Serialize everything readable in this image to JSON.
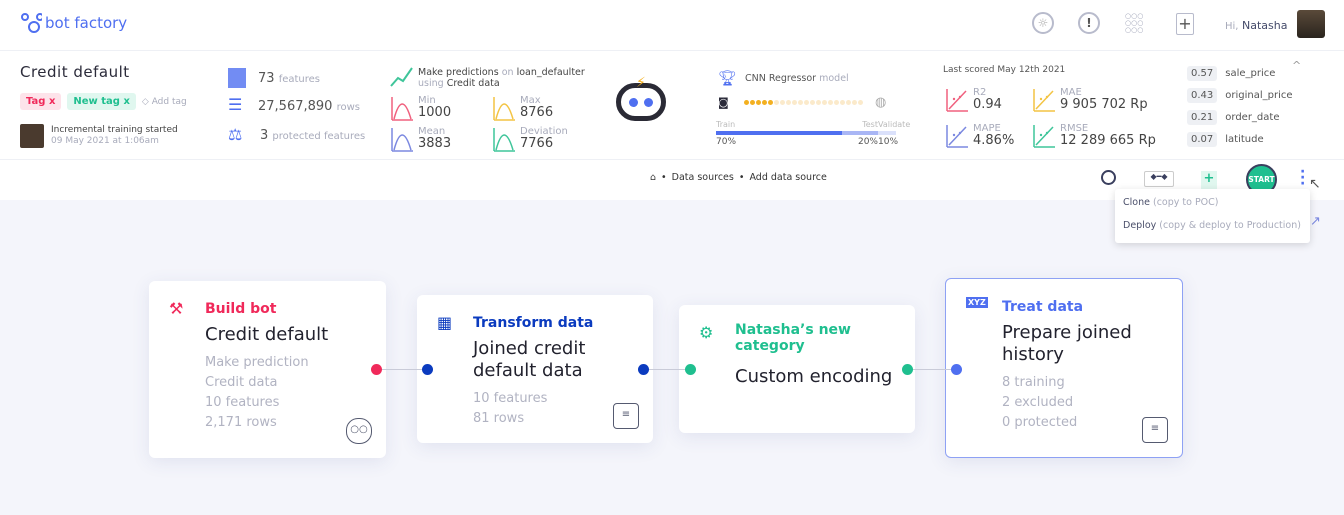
{
  "header": {
    "logo_text": "bot factory",
    "greeting": "Hi,",
    "user_name": "Natasha",
    "icons": [
      "lightbulb-icon",
      "alert-icon",
      "apps-grid-icon",
      "new-file-icon"
    ]
  },
  "project": {
    "title": "Credit default",
    "tags": [
      {
        "label": "Tag",
        "color": "#f0295a"
      },
      {
        "label": "New tag",
        "color": "#1fbf8f"
      }
    ],
    "add_tag": "Add tag",
    "activity": "Incremental training started",
    "activity_time": "09 May 2021 at 1:06am"
  },
  "dataset": {
    "features": "73",
    "features_label": "features",
    "rows": "27,567,890",
    "rows_label": "rows",
    "protected": "3",
    "protected_label": "protected features"
  },
  "prediction": {
    "l1a": "Make predictions",
    "l1b": "on",
    "l1c": "loan_defaulter",
    "l2a": "using",
    "l2b": "Credit data",
    "stats": [
      {
        "label": "Min",
        "value": "1000",
        "color": "#f0607e"
      },
      {
        "label": "Max",
        "value": "8766",
        "color": "#f3c443"
      },
      {
        "label": "Mean",
        "value": "3883",
        "color": "#7b88e0"
      },
      {
        "label": "Deviation",
        "value": "7766",
        "color": "#3fc59a"
      }
    ]
  },
  "model": {
    "name": "CNN Regressor",
    "suffix": "model",
    "progress_filled": 5,
    "progress_total": 20,
    "split": [
      {
        "label": "Train",
        "value": "70%",
        "pct": 70
      },
      {
        "label": "Test",
        "value": "20%",
        "pct": 20
      },
      {
        "label": "Validate",
        "value": "10%",
        "pct": 10
      }
    ]
  },
  "scores": {
    "title": "Last scored May 12th 2021",
    "metrics": [
      {
        "label": "R2",
        "value": "0.94",
        "color": "#f0607e"
      },
      {
        "label": "MAE",
        "value": "9 905 702 Rp",
        "color": "#f3c443"
      },
      {
        "label": "MAPE",
        "value": "4.86%",
        "color": "#7b88e0"
      },
      {
        "label": "RMSE",
        "value": "12 289 665 Rp",
        "color": "#3fc59a"
      }
    ]
  },
  "importance": [
    {
      "value": "0.57",
      "name": "sale_price"
    },
    {
      "value": "0.43",
      "name": "original_price"
    },
    {
      "value": "0.21",
      "name": "order_date"
    },
    {
      "value": "0.07",
      "name": "latitude"
    }
  ],
  "breadcrumb": {
    "items": [
      "Data sources",
      "Add data source"
    ]
  },
  "toolbar": {
    "start": "START"
  },
  "menu": {
    "items": [
      {
        "label": "Clone",
        "hint": "(copy to POC)"
      },
      {
        "label": "Deploy",
        "hint": "(copy & deploy to Production)"
      }
    ]
  },
  "pipeline": [
    {
      "type": "Build bot",
      "title": "Credit default",
      "details": [
        "Make prediction",
        "Credit data",
        "10 features",
        "2,171 rows"
      ],
      "color": "#f0295a"
    },
    {
      "type": "Transform data",
      "title": "Joined credit default data",
      "details": [
        "10 features",
        "81 rows"
      ],
      "color": "#0b3bbf"
    },
    {
      "type": "Natasha’s new category",
      "title": "Custom encoding",
      "details": [],
      "color": "#1fbf8f"
    },
    {
      "type": "Treat data",
      "title": "Prepare joined history",
      "details": [
        "8 training",
        "2  excluded",
        "0 protected"
      ],
      "color": "#4f6ff0"
    }
  ]
}
